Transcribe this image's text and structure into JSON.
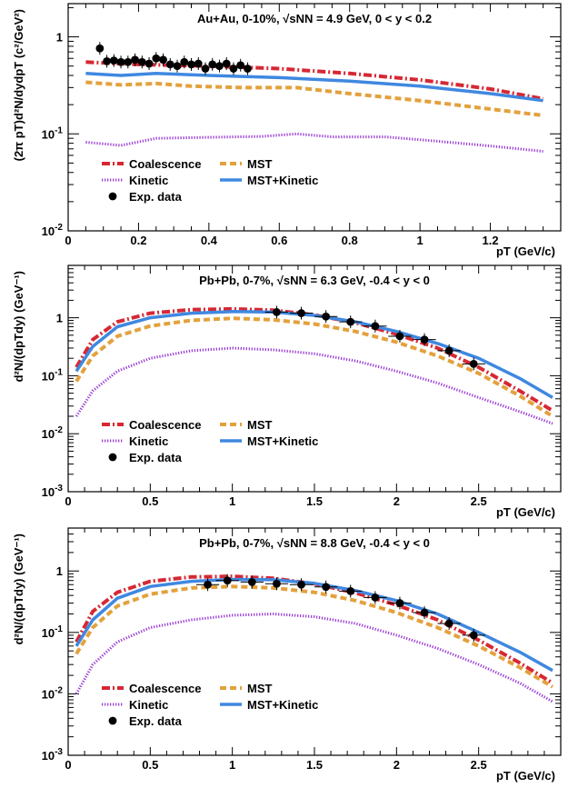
{
  "colors": {
    "coalescence": "#d62833",
    "kinetic": "#9b3fd4",
    "mst": "#e3a13c",
    "mst_kinetic": "#3f88e0",
    "exp_data": "#000000",
    "frame": "#000000"
  },
  "chart_data": [
    {
      "type": "line",
      "title": "Au+Au, 0-10%, √sNN = 4.9 GeV, 0 < y < 0.2",
      "xlabel": "pT (GeV/c)",
      "ylabel": "(2π pT)d²N/dydpT (c²/GeV²)",
      "xlim": [
        0,
        1.4
      ],
      "ylim": [
        0.01,
        2.2
      ],
      "ylog": true,
      "x_ticks": [
        "0",
        "0.2",
        "0.4",
        "0.6",
        "0.8",
        "1",
        "1.2"
      ],
      "y_ticks": [
        "10⁻²",
        "10⁻¹",
        "1"
      ],
      "legend": [
        "Coalescence",
        "MST",
        "Kinetic",
        "MST+Kinetic",
        "Exp. data"
      ],
      "series": [
        {
          "name": "Coalescence",
          "style": "dashdot",
          "x": [
            0.05,
            0.2,
            0.4,
            0.6,
            0.8,
            1.0,
            1.2,
            1.35
          ],
          "y": [
            0.55,
            0.52,
            0.5,
            0.47,
            0.42,
            0.36,
            0.29,
            0.23
          ]
        },
        {
          "name": "MST",
          "style": "dashed",
          "x": [
            0.05,
            0.15,
            0.25,
            0.35,
            0.5,
            0.65,
            0.8,
            1.0,
            1.2,
            1.35
          ],
          "y": [
            0.34,
            0.32,
            0.33,
            0.31,
            0.3,
            0.3,
            0.26,
            0.22,
            0.18,
            0.155
          ]
        },
        {
          "name": "Kinetic",
          "style": "dotted",
          "x": [
            0.05,
            0.15,
            0.25,
            0.4,
            0.55,
            0.65,
            0.75,
            0.9,
            1.0,
            1.2,
            1.35
          ],
          "y": [
            0.082,
            0.076,
            0.09,
            0.092,
            0.094,
            0.1,
            0.093,
            0.093,
            0.087,
            0.075,
            0.066
          ]
        },
        {
          "name": "MST+Kinetic",
          "style": "solid",
          "x": [
            0.05,
            0.15,
            0.25,
            0.4,
            0.6,
            0.8,
            1.0,
            1.2,
            1.35
          ],
          "y": [
            0.42,
            0.4,
            0.42,
            0.4,
            0.38,
            0.35,
            0.31,
            0.26,
            0.22
          ]
        },
        {
          "name": "Exp. data",
          "style": "marker",
          "x": [
            0.09,
            0.11,
            0.13,
            0.15,
            0.17,
            0.19,
            0.21,
            0.23,
            0.25,
            0.27,
            0.29,
            0.31,
            0.33,
            0.35,
            0.37,
            0.39,
            0.41,
            0.43,
            0.45,
            0.47,
            0.49,
            0.51
          ],
          "y": [
            0.76,
            0.56,
            0.57,
            0.55,
            0.55,
            0.58,
            0.55,
            0.53,
            0.6,
            0.58,
            0.52,
            0.5,
            0.55,
            0.52,
            0.53,
            0.47,
            0.52,
            0.5,
            0.53,
            0.47,
            0.51,
            0.47
          ]
        }
      ]
    },
    {
      "type": "line",
      "title": "Pb+Pb, 0-7%, √sNN = 6.3 GeV, -0.4 < y < 0",
      "xlabel": "pT (GeV/c)",
      "ylabel": "d²N/(dpTdy) (GeV⁻¹)",
      "xlim": [
        0,
        3
      ],
      "ylim": [
        0.001,
        8
      ],
      "ylog": true,
      "x_ticks": [
        "0",
        "0.5",
        "1",
        "1.5",
        "2",
        "2.5"
      ],
      "y_ticks": [
        "10⁻³",
        "10⁻²",
        "10⁻¹",
        "1"
      ],
      "legend": [
        "Coalescence",
        "MST",
        "Kinetic",
        "MST+Kinetic",
        "Exp. data"
      ],
      "series": [
        {
          "name": "Coalescence",
          "style": "dashdot",
          "x": [
            0.05,
            0.15,
            0.3,
            0.5,
            0.75,
            1.0,
            1.25,
            1.5,
            1.75,
            2.0,
            2.25,
            2.5,
            2.75,
            2.95
          ],
          "y": [
            0.14,
            0.42,
            0.85,
            1.2,
            1.38,
            1.42,
            1.35,
            1.12,
            0.82,
            0.52,
            0.3,
            0.14,
            0.055,
            0.025
          ]
        },
        {
          "name": "MST",
          "style": "dashed",
          "x": [
            0.05,
            0.15,
            0.3,
            0.5,
            0.75,
            1.0,
            1.25,
            1.5,
            1.75,
            2.0,
            2.25,
            2.5,
            2.75,
            2.95
          ],
          "y": [
            0.08,
            0.22,
            0.48,
            0.72,
            0.9,
            0.98,
            0.92,
            0.78,
            0.58,
            0.38,
            0.22,
            0.11,
            0.045,
            0.02
          ]
        },
        {
          "name": "Kinetic",
          "style": "dotted",
          "x": [
            0.05,
            0.15,
            0.3,
            0.5,
            0.75,
            1.0,
            1.25,
            1.5,
            1.75,
            2.0,
            2.25,
            2.5,
            2.75,
            2.95
          ],
          "y": [
            0.02,
            0.055,
            0.12,
            0.2,
            0.27,
            0.3,
            0.28,
            0.24,
            0.18,
            0.12,
            0.075,
            0.042,
            0.024,
            0.015
          ]
        },
        {
          "name": "MST+Kinetic",
          "style": "solid",
          "x": [
            0.05,
            0.15,
            0.3,
            0.5,
            0.75,
            1.0,
            1.25,
            1.5,
            1.75,
            2.0,
            2.25,
            2.5,
            2.75,
            2.95
          ],
          "y": [
            0.12,
            0.32,
            0.7,
            1.0,
            1.2,
            1.28,
            1.25,
            1.1,
            0.85,
            0.58,
            0.36,
            0.2,
            0.09,
            0.042
          ]
        },
        {
          "name": "Exp. data",
          "style": "marker",
          "x": [
            1.27,
            1.42,
            1.57,
            1.72,
            1.87,
            2.02,
            2.17,
            2.32,
            2.47
          ],
          "y": [
            1.25,
            1.2,
            1.05,
            0.85,
            0.72,
            0.48,
            0.42,
            0.27,
            0.16
          ]
        }
      ]
    },
    {
      "type": "line",
      "title": "Pb+Pb, 0-7%, √sNN = 8.8 GeV, -0.4 < y < 0",
      "xlabel": "pT (GeV/c)",
      "ylabel": "d²N/(dpTdy) (GeV⁻¹)",
      "xlim": [
        0,
        3
      ],
      "ylim": [
        0.001,
        5
      ],
      "ylog": true,
      "x_ticks": [
        "0",
        "0.5",
        "1",
        "1.5",
        "2",
        "2.5"
      ],
      "y_ticks": [
        "10⁻³",
        "10⁻²",
        "10⁻¹",
        "1"
      ],
      "legend": [
        "Coalescence",
        "MST",
        "Kinetic",
        "MST+Kinetic",
        "Exp. data"
      ],
      "series": [
        {
          "name": "Coalescence",
          "style": "dashdot",
          "x": [
            0.05,
            0.15,
            0.3,
            0.5,
            0.75,
            1.0,
            1.25,
            1.5,
            1.75,
            2.0,
            2.25,
            2.5,
            2.75,
            2.95
          ],
          "y": [
            0.07,
            0.22,
            0.45,
            0.68,
            0.8,
            0.82,
            0.76,
            0.62,
            0.44,
            0.28,
            0.16,
            0.075,
            0.032,
            0.015
          ]
        },
        {
          "name": "MST",
          "style": "dashed",
          "x": [
            0.05,
            0.15,
            0.3,
            0.5,
            0.75,
            1.0,
            1.25,
            1.5,
            1.75,
            2.0,
            2.25,
            2.5,
            2.75,
            2.95
          ],
          "y": [
            0.045,
            0.12,
            0.27,
            0.42,
            0.53,
            0.56,
            0.53,
            0.45,
            0.33,
            0.21,
            0.12,
            0.06,
            0.027,
            0.013
          ]
        },
        {
          "name": "Kinetic",
          "style": "dotted",
          "x": [
            0.05,
            0.15,
            0.3,
            0.5,
            0.75,
            1.0,
            1.25,
            1.5,
            1.75,
            2.0,
            2.25,
            2.5,
            2.75,
            2.95
          ],
          "y": [
            0.01,
            0.03,
            0.07,
            0.12,
            0.16,
            0.19,
            0.2,
            0.18,
            0.14,
            0.09,
            0.055,
            0.03,
            0.015,
            0.0075
          ]
        },
        {
          "name": "MST+Kinetic",
          "style": "solid",
          "x": [
            0.05,
            0.15,
            0.3,
            0.5,
            0.75,
            1.0,
            1.25,
            1.5,
            1.75,
            2.0,
            2.25,
            2.5,
            2.75,
            2.95
          ],
          "y": [
            0.06,
            0.16,
            0.36,
            0.56,
            0.68,
            0.73,
            0.72,
            0.63,
            0.48,
            0.33,
            0.2,
            0.1,
            0.048,
            0.024
          ]
        },
        {
          "name": "Exp. data",
          "style": "marker",
          "x": [
            0.85,
            0.97,
            1.12,
            1.27,
            1.42,
            1.57,
            1.72,
            1.87,
            2.02,
            2.17,
            2.32,
            2.47
          ],
          "y": [
            0.6,
            0.7,
            0.66,
            0.62,
            0.6,
            0.55,
            0.47,
            0.37,
            0.3,
            0.21,
            0.14,
            0.09
          ]
        }
      ]
    }
  ]
}
